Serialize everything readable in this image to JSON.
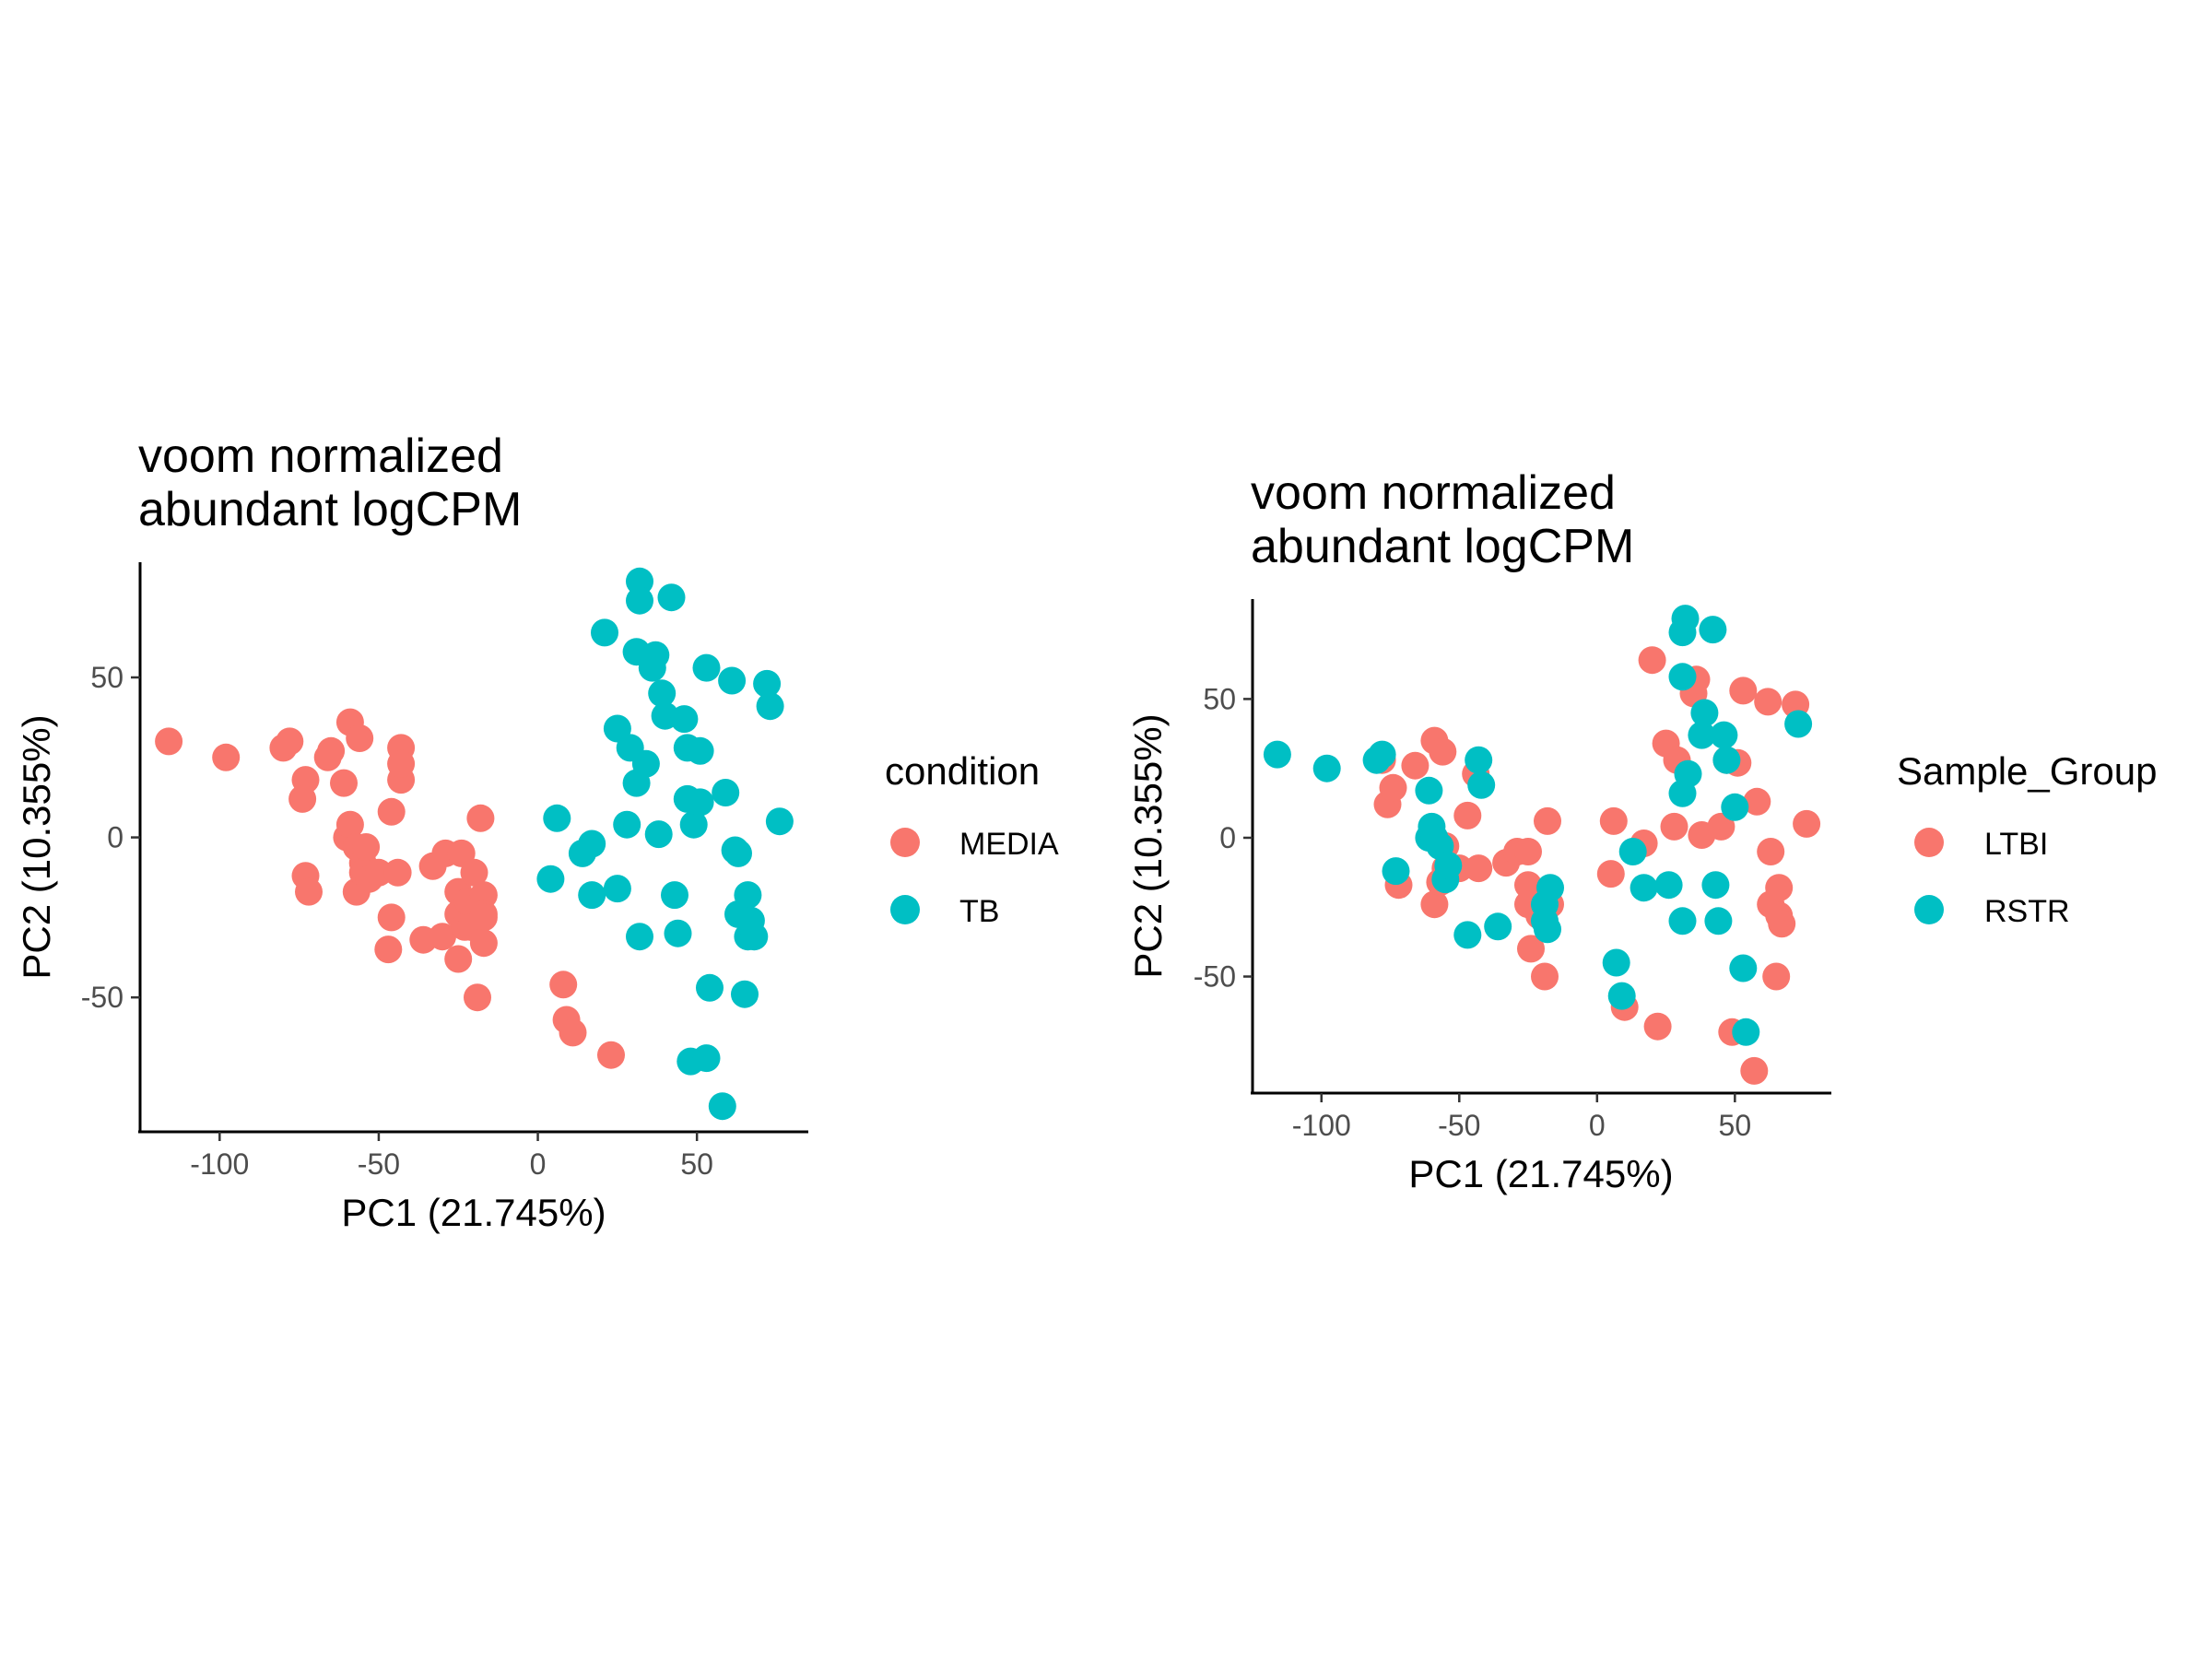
{
  "colors": {
    "red": "#F8766D",
    "teal": "#00BFC4",
    "axis": "#000000",
    "tick_text": "#4d4d4d"
  },
  "chart_data": [
    {
      "type": "scatter",
      "title": [
        "voom normalized",
        "abundant logCPM"
      ],
      "xlabel": "PC1 (21.745%)",
      "ylabel": "PC2 (10.355%)",
      "xlim": [
        -125,
        85
      ],
      "ylim": [
        -92,
        86
      ],
      "xticks": [
        -100,
        -50,
        0,
        50
      ],
      "xtick_labels": [
        "-100",
        "-50",
        "0",
        "50"
      ],
      "yticks": [
        -50,
        0,
        50
      ],
      "ytick_labels": [
        "-50",
        "0",
        "50"
      ],
      "legend": {
        "title": "condition",
        "position": "right"
      },
      "series": [
        {
          "name": "MEDIA",
          "color": "#F8766D",
          "points": [
            [
              -116,
              30
            ],
            [
              -98,
              25
            ],
            [
              -80,
              28
            ],
            [
              -78,
              30
            ],
            [
              -73,
              18
            ],
            [
              -74,
              12
            ],
            [
              -73,
              -12
            ],
            [
              -72,
              -17
            ],
            [
              -66,
              25
            ],
            [
              -65,
              27
            ],
            [
              -61,
              17
            ],
            [
              -60,
              0
            ],
            [
              -59,
              4
            ],
            [
              -59,
              36
            ],
            [
              -57,
              -3
            ],
            [
              -57,
              -17
            ],
            [
              -56,
              31
            ],
            [
              -55,
              -8
            ],
            [
              -55,
              -11
            ],
            [
              -54,
              -3
            ],
            [
              -53,
              -13
            ],
            [
              -50,
              -11
            ],
            [
              -47,
              -35
            ],
            [
              -46,
              8
            ],
            [
              -46,
              -25
            ],
            [
              -44,
              -11
            ],
            [
              -43,
              28
            ],
            [
              -43,
              18
            ],
            [
              -43,
              23
            ],
            [
              -36,
              -32
            ],
            [
              -33,
              -9
            ],
            [
              -30,
              -31
            ],
            [
              -29,
              -5
            ],
            [
              -24,
              -5
            ],
            [
              -25,
              -17
            ],
            [
              -25,
              -38
            ],
            [
              -25,
              -24
            ],
            [
              -23,
              -28
            ],
            [
              -22,
              -20
            ],
            [
              -21,
              -28
            ],
            [
              -20,
              -11
            ],
            [
              -19,
              -50
            ],
            [
              -18,
              6
            ],
            [
              -17,
              -18
            ],
            [
              -17,
              -24
            ],
            [
              -17,
              -25
            ],
            [
              -17,
              -33
            ],
            [
              8,
              -46
            ],
            [
              9,
              -57
            ],
            [
              11,
              -61
            ],
            [
              23,
              -68
            ]
          ]
        },
        {
          "name": "TB",
          "color": "#00BFC4",
          "points": [
            [
              4,
              -13
            ],
            [
              6,
              6
            ],
            [
              14,
              -5
            ],
            [
              17,
              -2
            ],
            [
              17,
              -18
            ],
            [
              21,
              64
            ],
            [
              25,
              34
            ],
            [
              25,
              -16
            ],
            [
              28,
              4
            ],
            [
              29,
              28
            ],
            [
              31,
              17
            ],
            [
              31,
              58
            ],
            [
              32,
              80
            ],
            [
              32,
              -31
            ],
            [
              32,
              74
            ],
            [
              34,
              23
            ],
            [
              36,
              53
            ],
            [
              37,
              57
            ],
            [
              38,
              1
            ],
            [
              39,
              45
            ],
            [
              40,
              38
            ],
            [
              42,
              75
            ],
            [
              43,
              -18
            ],
            [
              44,
              -30
            ],
            [
              46,
              37
            ],
            [
              47,
              28
            ],
            [
              47,
              12
            ],
            [
              48,
              -70
            ],
            [
              49,
              4
            ],
            [
              51,
              27
            ],
            [
              51,
              11
            ],
            [
              53,
              53
            ],
            [
              53,
              -69
            ],
            [
              54,
              -47
            ],
            [
              58,
              -84
            ],
            [
              59,
              14
            ],
            [
              61,
              49
            ],
            [
              62,
              -4
            ],
            [
              63,
              -5
            ],
            [
              63,
              -24
            ],
            [
              65,
              -49
            ],
            [
              66,
              -18
            ],
            [
              66,
              -31
            ],
            [
              67,
              -26
            ],
            [
              68,
              -31
            ],
            [
              72,
              48
            ],
            [
              73,
              41
            ],
            [
              76,
              5
            ]
          ]
        }
      ]
    },
    {
      "type": "scatter",
      "title": [
        "voom normalized",
        "abundant logCPM"
      ],
      "xlabel": "PC1 (21.745%)",
      "ylabel": "PC2 (10.355%)",
      "xlim": [
        -125,
        85
      ],
      "ylim": [
        -92,
        86
      ],
      "xticks": [
        -100,
        -50,
        0,
        50
      ],
      "xtick_labels": [
        "-100",
        "-50",
        "0",
        "50"
      ],
      "yticks": [
        -50,
        0,
        50
      ],
      "ytick_labels": [
        "-50",
        "0",
        "50"
      ],
      "legend": {
        "title": "Sample_Group",
        "position": "right"
      },
      "series": [
        {
          "name": "LTBI",
          "color": "#F8766D",
          "points": [
            [
              -78,
              28
            ],
            [
              -76,
              12
            ],
            [
              -74,
              18
            ],
            [
              -72,
              -17
            ],
            [
              -66,
              26
            ],
            [
              -59,
              35
            ],
            [
              -59,
              -24
            ],
            [
              -57,
              -16
            ],
            [
              -56,
              31
            ],
            [
              -55,
              -3
            ],
            [
              -55,
              -11
            ],
            [
              -50,
              -11
            ],
            [
              -47,
              8
            ],
            [
              -44,
              23
            ],
            [
              -43,
              -11
            ],
            [
              -33,
              -9
            ],
            [
              -29,
              -5
            ],
            [
              -25,
              -5
            ],
            [
              -25,
              -17
            ],
            [
              -25,
              -24
            ],
            [
              -24,
              -40
            ],
            [
              -21,
              -28
            ],
            [
              -19,
              -50
            ],
            [
              -18,
              6
            ],
            [
              -17,
              -24
            ],
            [
              5,
              -13
            ],
            [
              6,
              6
            ],
            [
              10,
              -61
            ],
            [
              17,
              -2
            ],
            [
              20,
              64
            ],
            [
              22,
              -68
            ],
            [
              25,
              34
            ],
            [
              28,
              4
            ],
            [
              29,
              28
            ],
            [
              35,
              52
            ],
            [
              36,
              57
            ],
            [
              38,
              1
            ],
            [
              45,
              4
            ],
            [
              47,
              28
            ],
            [
              49,
              -70
            ],
            [
              51,
              27
            ],
            [
              53,
              53
            ],
            [
              57,
              -84
            ],
            [
              58,
              13
            ],
            [
              62,
              49
            ],
            [
              63,
              -5
            ],
            [
              63,
              -24
            ],
            [
              65,
              -50
            ],
            [
              66,
              -18
            ],
            [
              66,
              -28
            ],
            [
              67,
              -31
            ],
            [
              72,
              48
            ],
            [
              76,
              5
            ]
          ]
        },
        {
          "name": "RSTR",
          "color": "#00BFC4",
          "points": [
            [
              -116,
              30
            ],
            [
              -98,
              25
            ],
            [
              -80,
              28
            ],
            [
              -78,
              30
            ],
            [
              -73,
              -12
            ],
            [
              -61,
              0
            ],
            [
              -61,
              17
            ],
            [
              -60,
              4
            ],
            [
              -59,
              0
            ],
            [
              -57,
              -3
            ],
            [
              -55,
              -15
            ],
            [
              -54,
              -10
            ],
            [
              -47,
              -35
            ],
            [
              -43,
              28
            ],
            [
              -42,
              19
            ],
            [
              -36,
              -32
            ],
            [
              -19,
              -30
            ],
            [
              -19,
              -24
            ],
            [
              -18,
              -33
            ],
            [
              -17,
              -18
            ],
            [
              7,
              -45
            ],
            [
              9,
              -57
            ],
            [
              13,
              -5
            ],
            [
              17,
              -18
            ],
            [
              26,
              -17
            ],
            [
              31,
              16
            ],
            [
              31,
              74
            ],
            [
              31,
              58
            ],
            [
              31,
              -30
            ],
            [
              32,
              79
            ],
            [
              33,
              23
            ],
            [
              38,
              37
            ],
            [
              39,
              45
            ],
            [
              42,
              75
            ],
            [
              43,
              -17
            ],
            [
              44,
              -30
            ],
            [
              46,
              37
            ],
            [
              47,
              28
            ],
            [
              50,
              11
            ],
            [
              53,
              -47
            ],
            [
              54,
              -70
            ],
            [
              73,
              41
            ]
          ]
        }
      ]
    }
  ]
}
